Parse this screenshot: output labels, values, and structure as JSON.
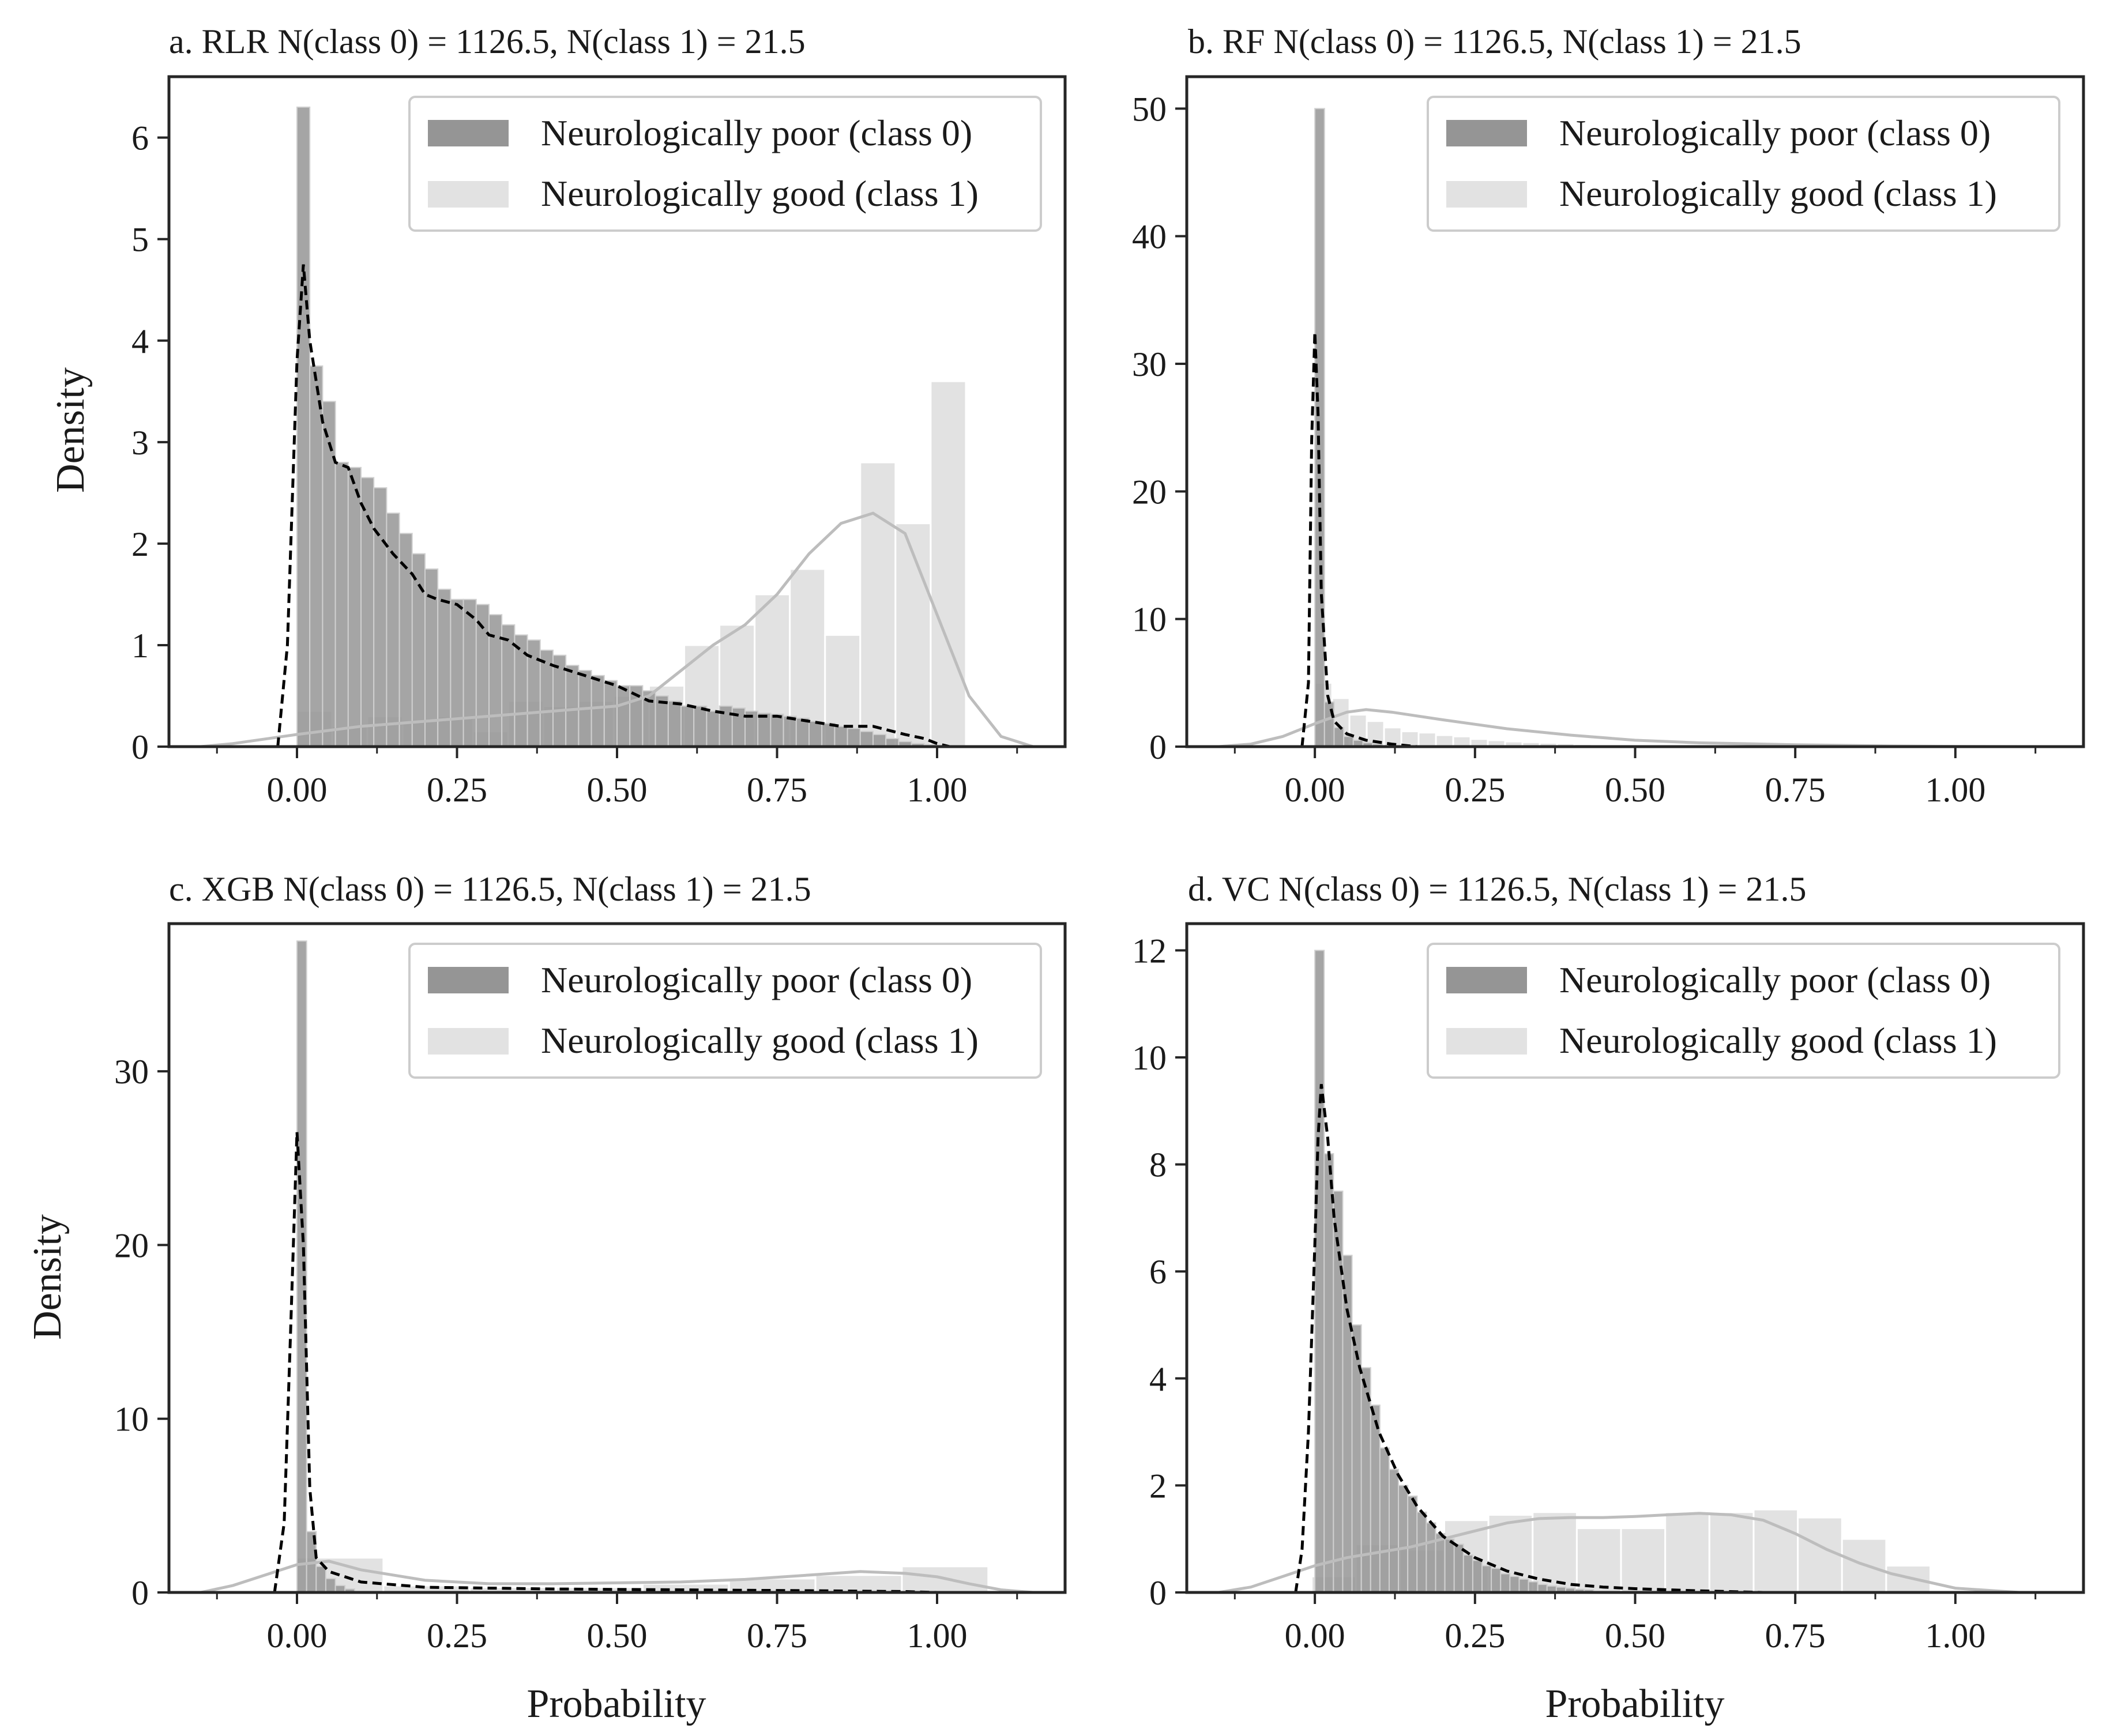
{
  "colors": {
    "class0_bar": "#959595",
    "class1_bar": "#e2e2e2",
    "class0_kde": "#000000",
    "class1_kde": "#bdbdbd",
    "axes": "#262626"
  },
  "chart_data": [
    {
      "id": "a",
      "type": "histogram",
      "title": "a. RLR   N(class 0) = 1126.5,  N(class 1) = 21.5",
      "xlabel": "",
      "ylabel": "Density",
      "xlim": [
        -0.2,
        1.2
      ],
      "ylim": [
        0,
        6.6
      ],
      "xticks": [
        0,
        0.25,
        0.5,
        0.75,
        1
      ],
      "xtick_labels": [
        "0.00",
        "0.25",
        "0.50",
        "0.75",
        "1.00"
      ],
      "yticks": [
        0,
        1,
        2,
        3,
        4,
        5,
        6
      ],
      "ytick_labels": [
        "0",
        "1",
        "2",
        "3",
        "4",
        "5",
        "6"
      ],
      "legend": [
        "Neurologically poor (class 0)",
        "Neurologically good (class 1)"
      ],
      "series": [
        {
          "name": "Neurologically poor (class 0)",
          "bin_start": 0.0,
          "bin_width": 0.02,
          "values": [
            6.3,
            3.75,
            3.4,
            2.8,
            2.75,
            2.65,
            2.55,
            2.3,
            2.1,
            1.9,
            1.75,
            1.55,
            1.45,
            1.45,
            1.4,
            1.3,
            1.2,
            1.1,
            1.05,
            0.95,
            0.9,
            0.8,
            0.75,
            0.7,
            0.65,
            0.6,
            0.6,
            0.55,
            0.5,
            0.45,
            0.4,
            0.4,
            0.35,
            0.4,
            0.38,
            0.35,
            0.33,
            0.32,
            0.3,
            0.28,
            0.25,
            0.23,
            0.2,
            0.18,
            0.15,
            0.12,
            0.08,
            0.05,
            0.03,
            0.02
          ]
        },
        {
          "name": "Neurologically good (class 1)",
          "bin_start": 0.0,
          "bin_width": 0.055,
          "values": [
            0.35,
            0.2,
            0.3,
            0.25,
            0.3,
            0.15,
            0.45,
            0.4,
            0.45,
            0.5,
            0.6,
            1.0,
            1.2,
            1.5,
            1.75,
            1.1,
            2.8,
            2.2,
            3.6
          ]
        }
      ],
      "kde": [
        {
          "name": "class 0 density",
          "x": [
            -0.03,
            -0.015,
            0.0,
            0.01,
            0.02,
            0.04,
            0.06,
            0.08,
            0.1,
            0.12,
            0.15,
            0.18,
            0.2,
            0.22,
            0.25,
            0.28,
            0.3,
            0.33,
            0.36,
            0.4,
            0.45,
            0.5,
            0.55,
            0.6,
            0.65,
            0.7,
            0.75,
            0.8,
            0.85,
            0.9,
            0.95,
            0.98,
            1.0,
            1.02
          ],
          "y": [
            0.0,
            1.0,
            3.8,
            4.75,
            4.0,
            3.2,
            2.8,
            2.75,
            2.4,
            2.15,
            1.9,
            1.7,
            1.5,
            1.45,
            1.4,
            1.25,
            1.1,
            1.05,
            0.9,
            0.8,
            0.7,
            0.6,
            0.45,
            0.42,
            0.35,
            0.3,
            0.3,
            0.25,
            0.2,
            0.2,
            0.12,
            0.08,
            0.03,
            0.0
          ]
        },
        {
          "name": "class 1 density",
          "x": [
            -0.15,
            -0.1,
            0.0,
            0.1,
            0.2,
            0.3,
            0.4,
            0.5,
            0.55,
            0.6,
            0.65,
            0.7,
            0.75,
            0.8,
            0.85,
            0.9,
            0.95,
            1.0,
            1.05,
            1.1,
            1.15
          ],
          "y": [
            0.0,
            0.03,
            0.12,
            0.2,
            0.25,
            0.3,
            0.35,
            0.4,
            0.5,
            0.75,
            1.0,
            1.2,
            1.5,
            1.9,
            2.2,
            2.3,
            2.1,
            1.3,
            0.5,
            0.1,
            0.0
          ]
        }
      ]
    },
    {
      "id": "b",
      "type": "histogram",
      "title": "b. RF   N(class 0) = 1126.5,  N(class 1) = 21.5",
      "xlabel": "",
      "ylabel": "",
      "xlim": [
        -0.2,
        1.2
      ],
      "ylim": [
        0,
        52.5
      ],
      "xticks": [
        0,
        0.25,
        0.5,
        0.75,
        1
      ],
      "xtick_labels": [
        "0.00",
        "0.25",
        "0.50",
        "0.75",
        "1.00"
      ],
      "yticks": [
        0,
        10,
        20,
        30,
        40,
        50
      ],
      "ytick_labels": [
        "0",
        "10",
        "20",
        "30",
        "40",
        "50"
      ],
      "legend": [
        "Neurologically poor (class 0)",
        "Neurologically good (class 1)"
      ],
      "series": [
        {
          "name": "Neurologically poor (class 0)",
          "bin_start": 0.0,
          "bin_width": 0.015,
          "values": [
            50,
            3.5,
            1.5,
            0.8,
            0.5,
            0.3,
            0.2
          ]
        },
        {
          "name": "Neurologically good (class 1)",
          "bin_start": 0.0,
          "bin_width": 0.027,
          "values": [
            5,
            3.8,
            2.5,
            2.0,
            1.5,
            1.2,
            1.1,
            0.9,
            0.8,
            0.6,
            0.5,
            0.4,
            0.35,
            0.3,
            0.25,
            0.2,
            0.15,
            0.12,
            0.1,
            0.08,
            0.06,
            0.05,
            0.04,
            0.03,
            0.02,
            0.02,
            0.01
          ]
        }
      ],
      "kde": [
        {
          "name": "class 0 density",
          "x": [
            -0.02,
            -0.01,
            -0.005,
            0.0,
            0.005,
            0.01,
            0.02,
            0.03,
            0.05,
            0.08,
            0.12,
            0.16
          ],
          "y": [
            0.0,
            5.0,
            24.0,
            32.5,
            26.0,
            12.0,
            4.0,
            2.0,
            1.0,
            0.5,
            0.2,
            0.0
          ]
        },
        {
          "name": "class 1 density",
          "x": [
            -0.15,
            -0.1,
            -0.05,
            0.0,
            0.05,
            0.08,
            0.12,
            0.2,
            0.3,
            0.4,
            0.5,
            0.6,
            0.75,
            0.9,
            1.0,
            1.1
          ],
          "y": [
            0.0,
            0.2,
            0.8,
            1.8,
            2.7,
            2.9,
            2.7,
            2.1,
            1.4,
            0.9,
            0.5,
            0.3,
            0.15,
            0.05,
            0.02,
            0.0
          ]
        }
      ]
    },
    {
      "id": "c",
      "type": "histogram",
      "title": "c. XGB   N(class 0) = 1126.5,  N(class 1) = 21.5",
      "xlabel": "Probability",
      "ylabel": "Density",
      "xlim": [
        -0.2,
        1.2
      ],
      "ylim": [
        0,
        38.5
      ],
      "xticks": [
        0,
        0.25,
        0.5,
        0.75,
        1
      ],
      "xtick_labels": [
        "0.00",
        "0.25",
        "0.50",
        "0.75",
        "1.00"
      ],
      "yticks": [
        0,
        10,
        20,
        30
      ],
      "ytick_labels": [
        "0",
        "10",
        "20",
        "30"
      ],
      "legend": [
        "Neurologically poor (class 0)",
        "Neurologically good (class 1)"
      ],
      "series": [
        {
          "name": "Neurologically poor (class 0)",
          "bin_start": 0.0,
          "bin_width": 0.015,
          "values": [
            37.5,
            3.5,
            1.5,
            0.8,
            0.4,
            0.2
          ]
        },
        {
          "name": "Neurologically good (class 1)",
          "bin_start": 0.0,
          "bin_width": 0.135,
          "values": [
            2.0,
            0.4,
            0.3,
            0.3,
            0.5,
            0.8,
            1.0,
            1.5
          ]
        }
      ],
      "kde": [
        {
          "name": "class 0 density",
          "x": [
            -0.035,
            -0.02,
            -0.01,
            0.0,
            0.01,
            0.02,
            0.03,
            0.05,
            0.1,
            0.2,
            0.4,
            0.6,
            0.8,
            0.95,
            1.0
          ],
          "y": [
            0.0,
            4.0,
            15.0,
            26.5,
            20.0,
            6.0,
            2.0,
            1.2,
            0.6,
            0.3,
            0.2,
            0.15,
            0.1,
            0.05,
            0.0
          ]
        },
        {
          "name": "class 1 density",
          "x": [
            -0.15,
            -0.1,
            0.0,
            0.05,
            0.1,
            0.2,
            0.3,
            0.4,
            0.5,
            0.6,
            0.7,
            0.8,
            0.88,
            0.95,
            1.0,
            1.05,
            1.1,
            1.15
          ],
          "y": [
            0.0,
            0.4,
            1.6,
            1.8,
            1.3,
            0.7,
            0.5,
            0.5,
            0.55,
            0.6,
            0.75,
            1.0,
            1.2,
            1.1,
            0.9,
            0.5,
            0.15,
            0.0
          ]
        }
      ]
    },
    {
      "id": "d",
      "type": "histogram",
      "title": "d. VC   N(class 0) = 1126.5,  N(class 1) = 21.5",
      "xlabel": "Probability",
      "ylabel": "",
      "xlim": [
        -0.2,
        1.2
      ],
      "ylim": [
        0,
        12.5
      ],
      "xticks": [
        0,
        0.25,
        0.5,
        0.75,
        1
      ],
      "xtick_labels": [
        "0.00",
        "0.25",
        "0.50",
        "0.75",
        "1.00"
      ],
      "yticks": [
        0,
        2,
        4,
        6,
        8,
        10,
        12
      ],
      "ytick_labels": [
        "0",
        "2",
        "4",
        "6",
        "8",
        "10",
        "12"
      ],
      "legend": [
        "Neurologically poor (class 0)",
        "Neurologically good (class 1)"
      ],
      "series": [
        {
          "name": "Neurologically poor (class 0)",
          "bin_start": 0.0,
          "bin_width": 0.0145,
          "values": [
            12.0,
            8.2,
            7.5,
            6.3,
            5.0,
            4.2,
            3.5,
            2.7,
            2.3,
            2.0,
            1.8,
            1.5,
            1.3,
            1.1,
            1.0,
            0.9,
            0.7,
            0.6,
            0.5,
            0.45,
            0.35,
            0.3,
            0.25,
            0.2,
            0.15,
            0.12,
            0.1,
            0.08,
            0.06,
            0.05
          ]
        },
        {
          "name": "Neurologically good (class 1)",
          "bin_start": -0.005,
          "bin_width": 0.069,
          "values": [
            0.3,
            0.9,
            0.8,
            1.35,
            1.45,
            1.5,
            1.2,
            1.2,
            1.5,
            1.5,
            1.55,
            1.4,
            1.0,
            0.5
          ]
        }
      ],
      "kde": [
        {
          "name": "class 0 density",
          "x": [
            -0.03,
            -0.02,
            -0.01,
            0.0,
            0.005,
            0.01,
            0.02,
            0.03,
            0.05,
            0.07,
            0.1,
            0.13,
            0.16,
            0.2,
            0.25,
            0.3,
            0.35,
            0.4,
            0.45,
            0.5,
            0.55,
            0.6,
            0.7
          ],
          "y": [
            0.0,
            0.8,
            3.0,
            6.5,
            8.5,
            9.5,
            8.5,
            7.0,
            5.3,
            4.2,
            3.0,
            2.2,
            1.6,
            1.05,
            0.65,
            0.4,
            0.25,
            0.15,
            0.1,
            0.07,
            0.05,
            0.03,
            0.0
          ]
        },
        {
          "name": "class 1 density",
          "x": [
            -0.15,
            -0.1,
            -0.05,
            0.0,
            0.05,
            0.1,
            0.15,
            0.2,
            0.25,
            0.3,
            0.35,
            0.4,
            0.45,
            0.5,
            0.55,
            0.6,
            0.65,
            0.7,
            0.75,
            0.8,
            0.85,
            0.9,
            1.0,
            1.1
          ],
          "y": [
            0.0,
            0.1,
            0.3,
            0.5,
            0.65,
            0.75,
            0.85,
            1.0,
            1.15,
            1.3,
            1.38,
            1.4,
            1.4,
            1.42,
            1.45,
            1.48,
            1.45,
            1.35,
            1.1,
            0.8,
            0.55,
            0.35,
            0.08,
            0.0
          ]
        }
      ]
    }
  ]
}
